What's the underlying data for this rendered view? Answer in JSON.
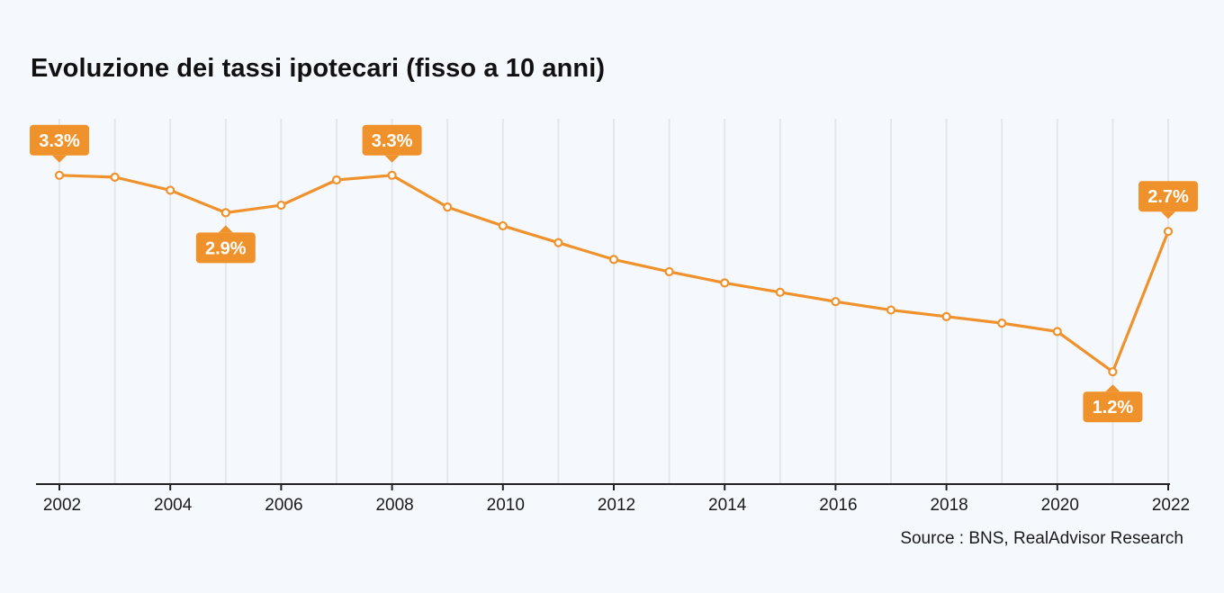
{
  "colors": {
    "line": "#f0922b",
    "label_bg": "#f0922b",
    "label_text": "#ffffff",
    "grid": "#e3e8ef",
    "axis": "#222222",
    "background": "#f5f8fd"
  },
  "chart_data": {
    "type": "line",
    "title": "Evoluzione dei tassi ipotecari (fisso a 10 anni)",
    "xlabel": "",
    "ylabel": "",
    "grid": "vertical",
    "x": [
      2002,
      2003,
      2004,
      2005,
      2006,
      2007,
      2008,
      2009,
      2010,
      2011,
      2012,
      2013,
      2014,
      2015,
      2016,
      2017,
      2018,
      2019,
      2020,
      2021,
      2022
    ],
    "x_tick_labels": [
      "2002",
      "2004",
      "2006",
      "2008",
      "2010",
      "2012",
      "2014",
      "2016",
      "2018",
      "2020",
      "2022"
    ],
    "series": [
      {
        "values": [
          3.3,
          3.28,
          3.14,
          2.9,
          2.98,
          3.25,
          3.3,
          2.96,
          2.76,
          2.58,
          2.4,
          2.27,
          2.15,
          2.05,
          1.95,
          1.86,
          1.79,
          1.72,
          1.63,
          1.2,
          2.7
        ]
      }
    ],
    "data_labels": [
      {
        "x": 2002,
        "text": "3.3%",
        "position": "above"
      },
      {
        "x": 2005,
        "text": "2.9%",
        "position": "below"
      },
      {
        "x": 2008,
        "text": "3.3%",
        "position": "above"
      },
      {
        "x": 2021,
        "text": "1.2%",
        "position": "below"
      },
      {
        "x": 2022,
        "text": "2.7%",
        "position": "above"
      }
    ],
    "ylim": [
      0,
      3.9
    ]
  },
  "footer": {
    "source": "Source : BNS, RealAdvisor Research"
  }
}
